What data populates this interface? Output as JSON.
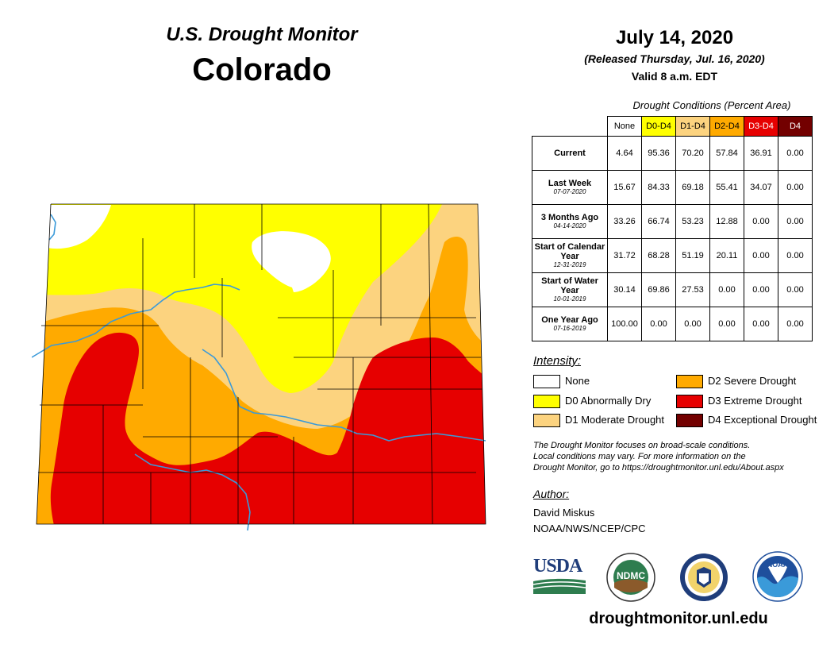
{
  "header": {
    "title": "U.S. Drought Monitor",
    "state": "Colorado"
  },
  "map_info": {
    "date": "July 14, 2020",
    "released": "(Released Thursday, Jul. 16, 2020)",
    "valid": "Valid 8 a.m. EDT"
  },
  "table": {
    "caption": "Drought Conditions (Percent Area)",
    "columns": [
      {
        "label": "None",
        "color": "#ffffff",
        "text_color": "#000000"
      },
      {
        "label": "D0-D4",
        "color": "#ffff00",
        "text_color": "#000000"
      },
      {
        "label": "D1-D4",
        "color": "#fcd37f",
        "text_color": "#000000"
      },
      {
        "label": "D2-D4",
        "color": "#ffaa00",
        "text_color": "#000000"
      },
      {
        "label": "D3-D4",
        "color": "#e60000",
        "text_color": "#ffffff"
      },
      {
        "label": "D4",
        "color": "#730000",
        "text_color": "#ffffff"
      }
    ],
    "rows": [
      {
        "label": "Current",
        "sub": "",
        "values": [
          "4.64",
          "95.36",
          "70.20",
          "57.84",
          "36.91",
          "0.00"
        ]
      },
      {
        "label": "Last Week",
        "sub": "07-07-2020",
        "values": [
          "15.67",
          "84.33",
          "69.18",
          "55.41",
          "34.07",
          "0.00"
        ]
      },
      {
        "label": "3 Months Ago",
        "sub": "04-14-2020",
        "values": [
          "33.26",
          "66.74",
          "53.23",
          "12.88",
          "0.00",
          "0.00"
        ]
      },
      {
        "label": "Start of Calendar Year",
        "sub": "12-31-2019",
        "values": [
          "31.72",
          "68.28",
          "51.19",
          "20.11",
          "0.00",
          "0.00"
        ]
      },
      {
        "label": "Start of Water Year",
        "sub": "10-01-2019",
        "values": [
          "30.14",
          "69.86",
          "27.53",
          "0.00",
          "0.00",
          "0.00"
        ]
      },
      {
        "label": "One Year Ago",
        "sub": "07-16-2019",
        "values": [
          "100.00",
          "0.00",
          "0.00",
          "0.00",
          "0.00",
          "0.00"
        ]
      }
    ]
  },
  "legend": {
    "title": "Intensity:",
    "items": [
      {
        "label": "None",
        "color": "#ffffff"
      },
      {
        "label": "D0 Abnormally Dry",
        "color": "#ffff00"
      },
      {
        "label": "D1 Moderate Drought",
        "color": "#fcd37f"
      },
      {
        "label": "D2 Severe Drought",
        "color": "#ffaa00"
      },
      {
        "label": "D3 Extreme Drought",
        "color": "#e60000"
      },
      {
        "label": "D4 Exceptional Drought",
        "color": "#730000"
      }
    ]
  },
  "disclaimer": [
    "The Drought Monitor focuses on broad-scale conditions.",
    "Local conditions may vary. For more information on the",
    "Drought Monitor, go to https://droughtmonitor.unl.edu/About.aspx"
  ],
  "author": {
    "title": "Author:",
    "name": "David Miskus",
    "org": "NOAA/NWS/NCEP/CPC"
  },
  "logos": {
    "usda": "USDA",
    "ndmc": "NDMC",
    "noaa": "NOAA"
  },
  "url": "droughtmonitor.unl.edu",
  "map_colors": {
    "none": "#ffffff",
    "d0": "#ffff00",
    "d1": "#fcd37f",
    "d2": "#ffaa00",
    "d3": "#e60000",
    "river": "#3a9ad9",
    "border": "#000000"
  }
}
